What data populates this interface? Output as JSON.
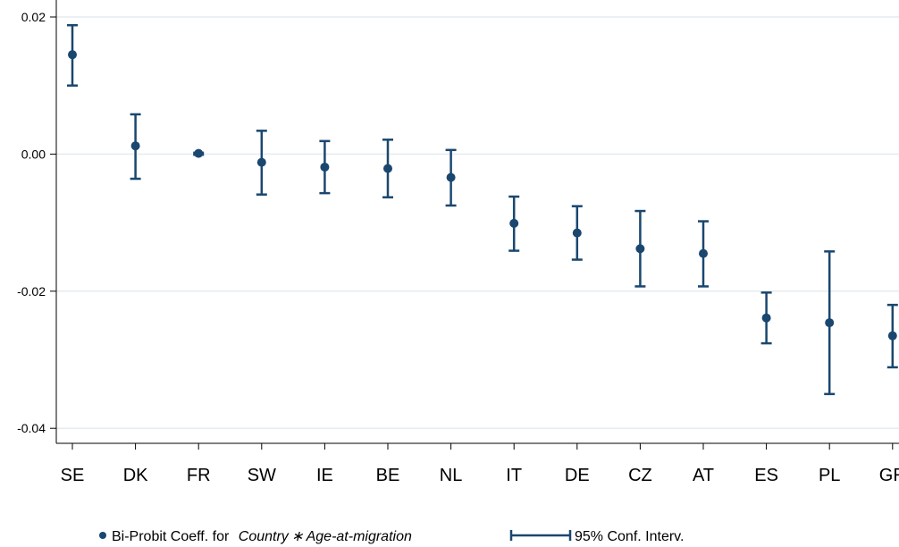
{
  "colors": {
    "marker": "#1a476f",
    "grid": "#e5ecf1",
    "axis": "#000000"
  },
  "chart_data": {
    "type": "scatter",
    "title": "",
    "xlabel": "",
    "ylabel": "",
    "categories": [
      "SE",
      "DK",
      "FR",
      "SW",
      "IE",
      "BE",
      "NL",
      "IT",
      "DE",
      "CZ",
      "AT",
      "ES",
      "PL",
      "GR"
    ],
    "ylim": [
      -0.0425,
      0.022
    ],
    "yticks": [
      0.02,
      0.0,
      -0.02,
      -0.04
    ],
    "ytick_labels": [
      "0.02",
      "0.00",
      "-0.02",
      "-0.04"
    ],
    "grid": true,
    "legend_position": "bottom",
    "series": [
      {
        "kind": "point",
        "legend_label": "Bi-Probit Coeff. for",
        "legend_label_italic": "Country ∗ Age-at-migration",
        "values": [
          0.0145,
          0.0012,
          0.0001,
          -0.0012,
          -0.0019,
          -0.0021,
          -0.0034,
          -0.0101,
          -0.0115,
          -0.0138,
          -0.0145,
          -0.0239,
          -0.0246,
          -0.0265
        ]
      },
      {
        "kind": "ci",
        "legend_label": "95% Conf. Interv.",
        "lower": [
          0.01,
          -0.0036,
          -0.0001,
          -0.0059,
          -0.0057,
          -0.0063,
          -0.0075,
          -0.0141,
          -0.0154,
          -0.0193,
          -0.0193,
          -0.0276,
          -0.035,
          -0.0311
        ],
        "upper": [
          0.0188,
          0.0058,
          0.0002,
          0.0034,
          0.0019,
          0.0021,
          0.0006,
          -0.0062,
          -0.0076,
          -0.0083,
          -0.0098,
          -0.0202,
          -0.0142,
          -0.022
        ]
      }
    ]
  }
}
